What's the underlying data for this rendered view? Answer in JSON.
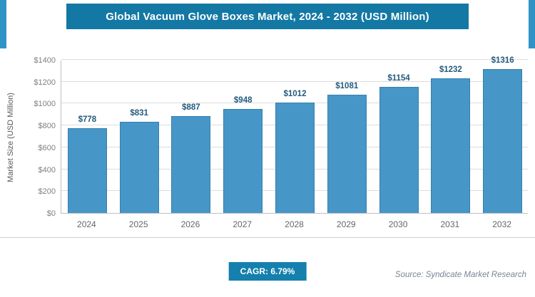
{
  "header": {
    "title": "Global Vacuum Glove Boxes Market, 2024 - 2032 (USD Million)"
  },
  "chart_data": {
    "type": "bar",
    "title": "Global Vacuum Glove Boxes Market, 2024 - 2032 (USD Million)",
    "categories": [
      "2024",
      "2025",
      "2026",
      "2027",
      "2028",
      "2029",
      "2030",
      "2031",
      "2032"
    ],
    "values": [
      778,
      831,
      887,
      948,
      1012,
      1081,
      1154,
      1232,
      1316
    ],
    "value_labels": [
      "$778",
      "$831",
      "$887",
      "$948",
      "$1012",
      "$1081",
      "$1154",
      "$1232",
      "$1316"
    ],
    "xlabel": "",
    "ylabel": "Market Size (USD Million)",
    "ylim": [
      0,
      1400
    ],
    "ytick_step": 200,
    "ytick_labels": [
      "$0",
      "$200",
      "$400",
      "$600",
      "$800",
      "$1000",
      "$1200",
      "$1400"
    ],
    "grid": true,
    "legend": "none",
    "colors": {
      "header_bg": "#1478a4",
      "edge_strip": "#2f93c6",
      "bar_fill": "#4796c8",
      "bar_border": "#3580ad",
      "value_label": "#235a7c",
      "badge_bg": "#1580ad"
    }
  },
  "footer": {
    "cagr_label": "CAGR: 6.79%",
    "source_text": "Source: Syndicate Market Research"
  }
}
